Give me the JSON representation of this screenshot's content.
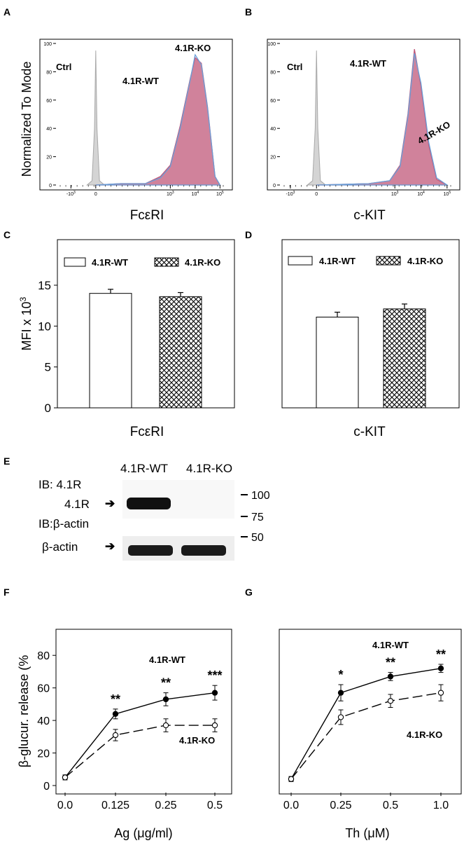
{
  "chart_data": [
    {
      "panel": "A",
      "type": "area",
      "ylabel": "Normalized To Mode",
      "xlabel": "FcεRI",
      "yticks": [
        "0",
        "20",
        "40",
        "60",
        "80",
        "100"
      ],
      "xticks": [
        "-10",
        "0",
        "10",
        "10",
        "10",
        "10"
      ],
      "xtick_exp": [
        "3",
        "",
        "3",
        "4",
        "5"
      ],
      "ylim": [
        0,
        100
      ],
      "annotations": [
        "Ctrl",
        "4.1R-WT",
        "4.1R-KO"
      ],
      "series": [
        {
          "name": "Ctrl",
          "color": "#c8c8c8",
          "x": [
            -0.35,
            -0.15,
            -0.05,
            0.0,
            0.05,
            0.15,
            0.35
          ],
          "values": [
            0,
            3,
            40,
            95,
            40,
            3,
            0
          ]
        },
        {
          "name": "4.1R-WT",
          "color": "#c0587a",
          "x": [
            0.0,
            1.0,
            2.0,
            2.6,
            3.0,
            3.4,
            3.8,
            4.0,
            4.25,
            4.5,
            4.8,
            5.0
          ],
          "values": [
            0,
            1,
            1,
            6,
            14,
            42,
            75,
            90,
            86,
            55,
            6,
            0
          ]
        },
        {
          "name": "4.1R-KO",
          "color": "#6a9fd8",
          "x": [
            0.0,
            1.0,
            2.0,
            2.6,
            3.0,
            3.4,
            3.8,
            4.0,
            4.25,
            4.5,
            4.8,
            5.0
          ],
          "values": [
            0,
            1,
            1,
            5,
            13,
            40,
            74,
            92,
            85,
            54,
            6,
            0
          ]
        }
      ]
    },
    {
      "panel": "B",
      "type": "area",
      "xlabel": "c-KIT",
      "yticks": [
        "0",
        "20",
        "40",
        "60",
        "80",
        "100"
      ],
      "xticks": [
        "-10",
        "0",
        "10",
        "10",
        "10",
        "10"
      ],
      "xtick_exp": [
        "3",
        "",
        "3",
        "4",
        "5"
      ],
      "ylim": [
        0,
        100
      ],
      "annotations": [
        "Ctrl",
        "4.1R-WT",
        "4.1R-KO"
      ],
      "series": [
        {
          "name": "Ctrl",
          "color": "#c8c8c8",
          "x": [
            -0.35,
            -0.15,
            -0.05,
            0.0,
            0.05,
            0.15,
            0.35
          ],
          "values": [
            0,
            3,
            40,
            95,
            40,
            3,
            0
          ]
        },
        {
          "name": "4.1R-WT",
          "color": "#c0587a",
          "x": [
            0.0,
            2.0,
            2.8,
            3.2,
            3.5,
            3.75,
            4.0,
            4.3,
            4.6,
            5.0
          ],
          "values": [
            0,
            1,
            3,
            14,
            50,
            96,
            70,
            28,
            4,
            0
          ]
        },
        {
          "name": "4.1R-KO",
          "color": "#6a9fd8",
          "x": [
            0.0,
            2.0,
            2.8,
            3.2,
            3.5,
            3.75,
            4.0,
            4.3,
            4.6,
            5.0
          ],
          "values": [
            0,
            1,
            3,
            13,
            48,
            93,
            72,
            30,
            5,
            0
          ]
        }
      ]
    },
    {
      "panel": "C",
      "type": "bar",
      "ylabel": "MFI x 10",
      "ylabel_exp": "3",
      "xlabel": "FcεRI",
      "yticks": [
        "0",
        "5",
        "10",
        "15"
      ],
      "ylim": [
        0,
        18
      ],
      "legend_position": "top",
      "series": [
        {
          "name": "4.1R-WT",
          "values": [
            14.0
          ],
          "error": [
            0.5
          ]
        },
        {
          "name": "4.1R-KO",
          "values": [
            13.6
          ],
          "error": [
            0.5
          ]
        }
      ]
    },
    {
      "panel": "D",
      "type": "bar",
      "xlabel": "c-KIT",
      "ylim": [
        0,
        18
      ],
      "legend_position": "top",
      "series": [
        {
          "name": "4.1R-WT",
          "values": [
            11.1
          ],
          "error": [
            0.6
          ]
        },
        {
          "name": "4.1R-KO",
          "values": [
            12.1
          ],
          "error": [
            0.6
          ]
        }
      ]
    },
    {
      "panel": "F",
      "type": "line",
      "ylabel": "β-glucur. release (%",
      "xlabel": "Ag (μg/ml)",
      "xticks": [
        "0.0",
        "0.125",
        "0.25",
        "0.5"
      ],
      "yticks": [
        "0",
        "20",
        "40",
        "60",
        "80"
      ],
      "ylim": [
        0,
        90
      ],
      "significance": [
        "**",
        "**",
        "***"
      ],
      "series": [
        {
          "name": "4.1R-WT",
          "x": [
            "0.0",
            "0.125",
            "0.25",
            "0.5"
          ],
          "values": [
            5,
            44,
            53,
            57
          ],
          "error": [
            1.5,
            3,
            4,
            4.5
          ]
        },
        {
          "name": "4.1R-KO",
          "x": [
            "0.0",
            "0.125",
            "0.25",
            "0.5"
          ],
          "values": [
            5,
            31,
            37,
            37
          ],
          "error": [
            1.5,
            3.5,
            4,
            4
          ]
        }
      ]
    },
    {
      "panel": "G",
      "type": "line",
      "xlabel": "Th (μM)",
      "xticks": [
        "0.0",
        "0.25",
        "0.5",
        "1.0"
      ],
      "ylim": [
        0,
        90
      ],
      "significance": [
        "*",
        "**",
        "**"
      ],
      "series": [
        {
          "name": "4.1R-WT",
          "x": [
            "0.0",
            "0.25",
            "0.5",
            "1.0"
          ],
          "values": [
            4,
            57,
            67,
            72
          ],
          "error": [
            1.5,
            5,
            2.5,
            2.5
          ]
        },
        {
          "name": "4.1R-KO",
          "x": [
            "0.0",
            "0.25",
            "0.5",
            "1.0"
          ],
          "values": [
            4,
            42,
            52,
            57
          ],
          "error": [
            1.5,
            4.5,
            4,
            5
          ]
        }
      ]
    }
  ],
  "blot": {
    "panel": "E",
    "lanes": [
      "4.1R-WT",
      "4.1R-KO"
    ],
    "ib1": "IB: 4.1R",
    "band1": "4.1R",
    "ib2": "IB:β-actin",
    "band2": "β-actin",
    "mw": [
      "100",
      "75",
      "50"
    ]
  },
  "panel_letters": [
    "A",
    "B",
    "C",
    "D",
    "E",
    "F",
    "G"
  ]
}
